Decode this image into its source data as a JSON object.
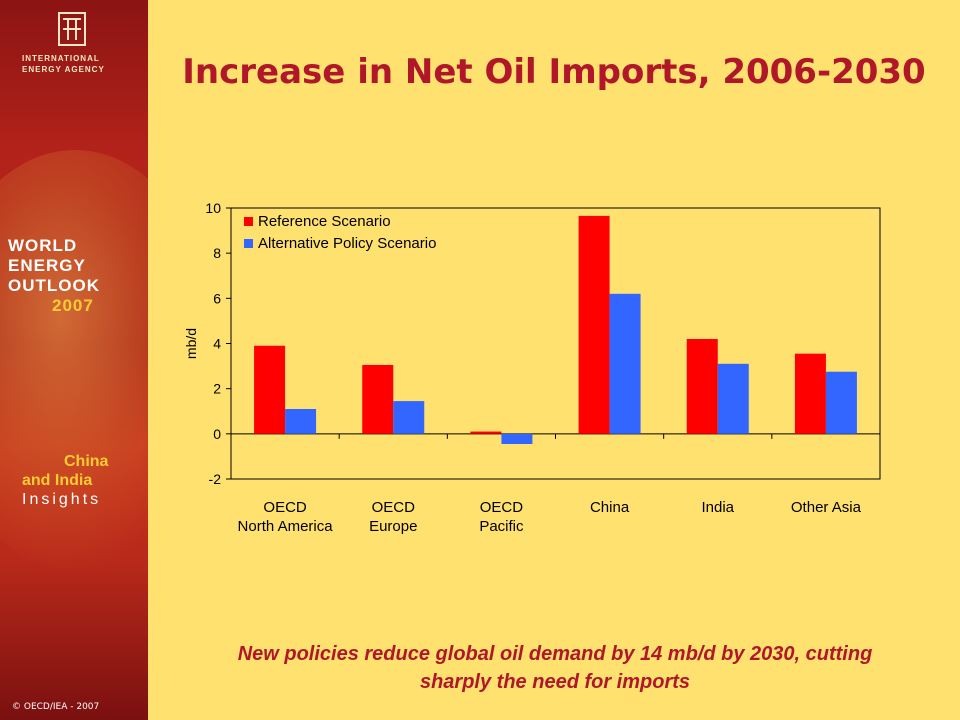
{
  "agency": {
    "line1": "INTERNATIONAL",
    "line2": "ENERGY AGENCY"
  },
  "report": {
    "line1": "WORLD",
    "line2": "ENERGY",
    "line3": "OUTLOOK",
    "year": "2007",
    "insight1": "China",
    "insight2": "and India",
    "insight3": "Insights"
  },
  "copyright": "© OECD/IEA - 2007",
  "title": "Increase in Net Oil Imports, 2006-2030",
  "subtitle_line1": "New policies reduce global oil demand by 14 mb/d by 2030, cutting",
  "subtitle_line2": "sharply the need for imports",
  "colors": {
    "reference": "#ff0000",
    "alternative": "#3366ff",
    "title": "#b0182a",
    "background": "#FFE170"
  },
  "chart_data": {
    "type": "bar",
    "title": "",
    "xlabel": "",
    "ylabel": "mb/d",
    "ylim": [
      -2,
      10
    ],
    "yticks": [
      "10",
      "8",
      "6",
      "4",
      "2",
      "0",
      "-2"
    ],
    "categories": [
      [
        "OECD",
        "North America"
      ],
      [
        "OECD",
        "Europe"
      ],
      [
        "OECD",
        "Pacific"
      ],
      [
        "China"
      ],
      [
        "India"
      ],
      [
        "Other Asia"
      ]
    ],
    "series": [
      {
        "name": "Reference Scenario",
        "values": [
          3.9,
          3.05,
          0.1,
          9.65,
          4.2,
          3.55
        ]
      },
      {
        "name": "Alternative Policy Scenario",
        "values": [
          1.1,
          1.45,
          -0.45,
          6.2,
          3.1,
          2.75
        ]
      }
    ],
    "legend": "top-left",
    "grid": false
  }
}
